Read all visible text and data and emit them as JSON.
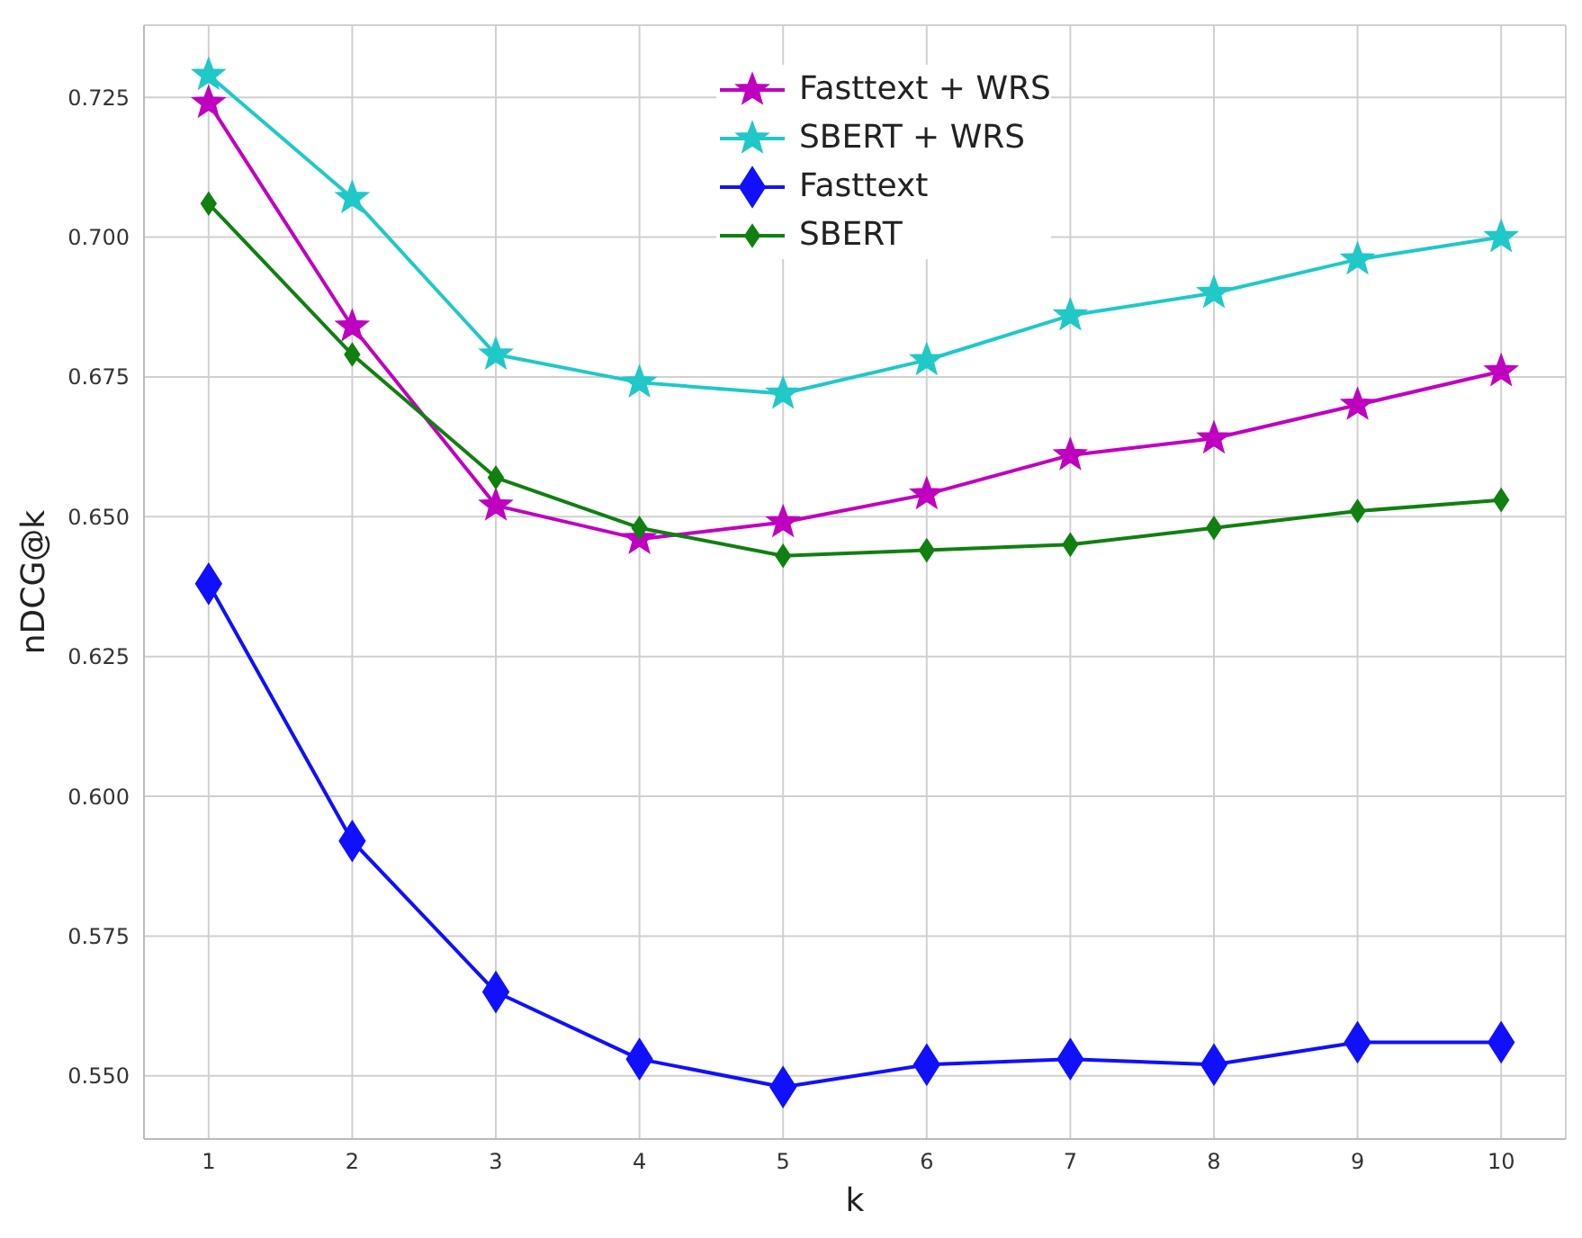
{
  "chart_data": {
    "type": "line",
    "xlabel": "k",
    "ylabel": "nDCG@k",
    "x": [
      1,
      2,
      3,
      4,
      5,
      6,
      7,
      8,
      9,
      10
    ],
    "series": [
      {
        "name": "Fasttext + WRS",
        "color": "#c000c0",
        "marker": "star",
        "values": [
          0.724,
          0.684,
          0.652,
          0.646,
          0.649,
          0.654,
          0.661,
          0.664,
          0.67,
          0.676
        ]
      },
      {
        "name": "SBERT + WRS",
        "color": "#20c8c8",
        "marker": "star",
        "values": [
          0.729,
          0.707,
          0.679,
          0.674,
          0.672,
          0.678,
          0.686,
          0.69,
          0.696,
          0.7
        ]
      },
      {
        "name": "Fasttext",
        "color": "#1010ff",
        "marker": "diamond",
        "values": [
          0.638,
          0.592,
          0.565,
          0.553,
          0.548,
          0.552,
          0.553,
          0.552,
          0.556,
          0.556
        ]
      },
      {
        "name": "SBERT",
        "color": "#108010",
        "marker": "diamond",
        "values": [
          0.706,
          0.679,
          0.657,
          0.648,
          0.643,
          0.644,
          0.645,
          0.648,
          0.651,
          0.653
        ]
      }
    ],
    "xlim": [
      0.55,
      10.45
    ],
    "xticks": [
      1,
      2,
      3,
      4,
      5,
      6,
      7,
      8,
      9,
      10
    ],
    "ylim": [
      0.5387,
      0.7379
    ],
    "yticks": [
      {
        "value": 0.55,
        "label": "0.550"
      },
      0.575,
      {
        "value": 0.6,
        "label": "0.600"
      },
      0.625,
      {
        "value": 0.65,
        "label": "0.650"
      },
      0.675,
      {
        "value": 0.7,
        "label": "0.700"
      },
      0.725
    ],
    "grid": true,
    "legend": "top",
    "line_style": "solid"
  }
}
